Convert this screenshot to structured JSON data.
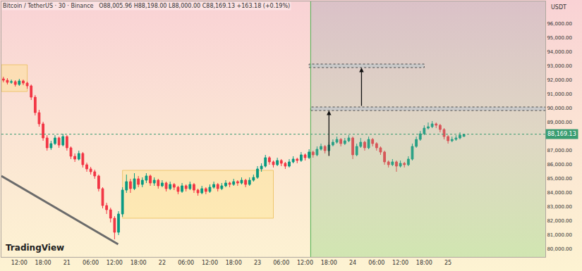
{
  "chart_data": {
    "type": "candlestick",
    "title": "Bitcoin / TetherUS · 30 · Binance   O88,005.96 H88,198.00 L88,000.00 C88,169.13 +163.18 (+0.19%)",
    "unit_label": "USDT",
    "watermark": "TradingView",
    "categories": [
      null,
      null,
      null,
      null,
      "12:00",
      null,
      null,
      null,
      null,
      null,
      "18:00",
      null,
      null,
      null,
      null,
      null,
      "21",
      null,
      null,
      null,
      null,
      null,
      "06:00",
      null,
      null,
      null,
      null,
      null,
      "12:00",
      null,
      null,
      null,
      null,
      null,
      "18:00",
      null,
      null,
      null,
      null,
      null,
      "22",
      null,
      null,
      null,
      null,
      null,
      "06:00",
      null,
      null,
      null,
      null,
      null,
      "12:00",
      null,
      null,
      null,
      null,
      null,
      "18:00",
      null,
      null,
      null,
      null,
      null,
      "23",
      null,
      null,
      null,
      null,
      null,
      "06:00",
      null,
      null,
      null,
      null,
      null,
      "12:00",
      null,
      null,
      null,
      null,
      null,
      "18:00",
      null,
      null,
      null,
      null,
      null,
      "24",
      null,
      null,
      null,
      null,
      null,
      "06:00",
      null,
      null,
      null,
      null,
      null,
      "12:00",
      null,
      null,
      null,
      null,
      null,
      "18:00",
      null,
      null,
      null,
      null,
      null,
      "25",
      null,
      null,
      null,
      null,
      null,
      null,
      null,
      null,
      null,
      null,
      null,
      null,
      null,
      null,
      null,
      null,
      null,
      null,
      null,
      null,
      null,
      null,
      null,
      null
    ],
    "ohlc": [
      [
        92100,
        92250,
        91850,
        92000
      ],
      [
        92000,
        92150,
        91700,
        91850
      ],
      [
        91850,
        92050,
        91750,
        91900
      ],
      [
        91900,
        92000,
        91550,
        91700
      ],
      [
        91700,
        92100,
        91600,
        91950
      ],
      [
        91950,
        92050,
        91650,
        91800
      ],
      [
        91800,
        91900,
        91400,
        91600
      ],
      [
        91600,
        91700,
        90600,
        90800
      ],
      [
        90800,
        90950,
        89500,
        89700
      ],
      [
        89700,
        89900,
        88700,
        88900
      ],
      [
        88900,
        89050,
        87700,
        87900
      ],
      [
        87900,
        88100,
        87000,
        87200
      ],
      [
        87200,
        87700,
        87050,
        87500
      ],
      [
        87500,
        88100,
        87400,
        87900
      ],
      [
        87900,
        88000,
        87200,
        87400
      ],
      [
        87400,
        88200,
        87300,
        88000
      ],
      [
        88000,
        88100,
        87000,
        87200
      ],
      [
        87200,
        87300,
        86400,
        86600
      ],
      [
        86600,
        86800,
        86200,
        86400
      ],
      [
        86400,
        87000,
        86300,
        86800
      ],
      [
        86800,
        86900,
        85800,
        86000
      ],
      [
        86000,
        86150,
        85500,
        85700
      ],
      [
        85700,
        85850,
        85300,
        85500
      ],
      [
        85500,
        85650,
        85000,
        85200
      ],
      [
        85200,
        85300,
        84100,
        84300
      ],
      [
        84300,
        84400,
        82900,
        83100
      ],
      [
        83100,
        83300,
        82500,
        82800
      ],
      [
        82800,
        82950,
        81900,
        82200
      ],
      [
        82200,
        82350,
        80700,
        81200
      ],
      [
        81200,
        82700,
        81000,
        82500
      ],
      [
        82500,
        84400,
        82300,
        84200
      ],
      [
        84200,
        85300,
        84000,
        84800
      ],
      [
        84800,
        85000,
        84000,
        84300
      ],
      [
        84300,
        85400,
        84200,
        85000
      ],
      [
        85000,
        85200,
        84400,
        84600
      ],
      [
        84600,
        85100,
        84400,
        84900
      ],
      [
        84900,
        85400,
        84700,
        85200
      ],
      [
        85200,
        85300,
        84500,
        84700
      ],
      [
        84700,
        85100,
        84500,
        84900
      ],
      [
        84900,
        85000,
        84300,
        84500
      ],
      [
        84500,
        84900,
        84400,
        84700
      ],
      [
        84700,
        84800,
        84100,
        84300
      ],
      [
        84300,
        84800,
        84200,
        84600
      ],
      [
        84600,
        84700,
        84200,
        84400
      ],
      [
        84400,
        84500,
        83900,
        84100
      ],
      [
        84100,
        84700,
        84000,
        84500
      ],
      [
        84500,
        84600,
        84100,
        84300
      ],
      [
        84300,
        84800,
        84200,
        84600
      ],
      [
        84600,
        84700,
        84000,
        84200
      ],
      [
        84200,
        84300,
        83800,
        84000
      ],
      [
        84000,
        84500,
        83900,
        84300
      ],
      [
        84300,
        84400,
        83900,
        84100
      ],
      [
        84100,
        84600,
        84000,
        84400
      ],
      [
        84400,
        84800,
        84300,
        84600
      ],
      [
        84600,
        84700,
        84100,
        84300
      ],
      [
        84300,
        84700,
        84200,
        84500
      ],
      [
        84500,
        84900,
        84400,
        84700
      ],
      [
        84700,
        84800,
        84400,
        84600
      ],
      [
        84600,
        85000,
        84500,
        84800
      ],
      [
        84800,
        84900,
        84500,
        84700
      ],
      [
        84700,
        85100,
        84600,
        84900
      ],
      [
        84900,
        85000,
        84400,
        84600
      ],
      [
        84600,
        85100,
        84500,
        84900
      ],
      [
        84900,
        85300,
        84800,
        85100
      ],
      [
        85100,
        85900,
        85000,
        85700
      ],
      [
        85700,
        86100,
        85500,
        85900
      ],
      [
        85900,
        86700,
        85800,
        86500
      ],
      [
        86500,
        86600,
        86000,
        86200
      ],
      [
        86200,
        86300,
        85800,
        86000
      ],
      [
        86000,
        86500,
        85900,
        86300
      ],
      [
        86300,
        86400,
        85900,
        86100
      ],
      [
        86100,
        86200,
        85700,
        85900
      ],
      [
        85900,
        86400,
        85800,
        86200
      ],
      [
        86200,
        86600,
        86100,
        86400
      ],
      [
        86400,
        86500,
        86100,
        86300
      ],
      [
        86300,
        86900,
        86200,
        86700
      ],
      [
        86700,
        86800,
        86300,
        86500
      ],
      [
        86500,
        87100,
        86400,
        86900
      ],
      [
        86900,
        87000,
        86500,
        86700
      ],
      [
        86700,
        87300,
        86600,
        87100
      ],
      [
        87100,
        87500,
        87000,
        87300
      ],
      [
        87300,
        87400,
        86800,
        87000
      ],
      [
        87000,
        87600,
        86900,
        87400
      ],
      [
        87400,
        87800,
        87300,
        87600
      ],
      [
        87600,
        88000,
        87500,
        87800
      ],
      [
        87800,
        87900,
        87300,
        87500
      ],
      [
        87500,
        87900,
        87400,
        87700
      ],
      [
        87700,
        88100,
        87600,
        87900
      ],
      [
        87900,
        88000,
        86400,
        86700
      ],
      [
        86700,
        87500,
        86600,
        87300
      ],
      [
        87300,
        87900,
        87200,
        87600
      ],
      [
        87600,
        87700,
        87000,
        87200
      ],
      [
        87200,
        88000,
        87100,
        87800
      ],
      [
        87800,
        87900,
        87300,
        87500
      ],
      [
        87500,
        87600,
        87000,
        87200
      ],
      [
        87200,
        87300,
        86700,
        86900
      ],
      [
        86900,
        87000,
        86000,
        86200
      ],
      [
        86200,
        86300,
        85800,
        86000
      ],
      [
        86000,
        86400,
        85900,
        86200
      ],
      [
        86200,
        86300,
        85500,
        85900
      ],
      [
        85900,
        86300,
        85800,
        86100
      ],
      [
        86100,
        86200,
        85800,
        86000
      ],
      [
        86000,
        86600,
        85900,
        86400
      ],
      [
        86400,
        87500,
        86300,
        87300
      ],
      [
        87300,
        88000,
        87200,
        87800
      ],
      [
        87800,
        88400,
        87700,
        88200
      ],
      [
        88200,
        88800,
        88100,
        88600
      ],
      [
        88600,
        89000,
        88500,
        88700
      ],
      [
        88700,
        89100,
        88600,
        88900
      ],
      [
        88900,
        89000,
        88600,
        88800
      ],
      [
        88800,
        88900,
        88300,
        88500
      ],
      [
        88500,
        88600,
        87800,
        88000
      ],
      [
        88000,
        88100,
        87500,
        87700
      ],
      [
        87700,
        88000,
        87600,
        87800
      ],
      [
        87800,
        88100,
        87700,
        87900
      ],
      [
        87900,
        88300,
        87800,
        88100
      ],
      [
        88005.96,
        88198,
        88000,
        88169.13
      ],
      null,
      null,
      null,
      null,
      null,
      null,
      null,
      null,
      null,
      null,
      null,
      null,
      null,
      null,
      null,
      null,
      null,
      null,
      null,
      null
    ],
    "ylim": [
      79450,
      97600
    ],
    "yticks": [
      {
        "value": 80000,
        "label": "80,000.00"
      },
      {
        "value": 81000,
        "label": "81,000.00"
      },
      {
        "value": 82000,
        "label": "82,000.00"
      },
      {
        "value": 83000,
        "label": "83,000.00"
      },
      {
        "value": 84000,
        "label": "84,000.00"
      },
      {
        "value": 85000,
        "label": "85,000.00"
      },
      {
        "value": 86000,
        "label": "86,000.00"
      },
      {
        "value": 87000,
        "label": "87,000.00"
      },
      {
        "value": 88000,
        "label": "88,000.00"
      },
      {
        "value": 89000,
        "label": "89,000.00"
      },
      {
        "value": 90000,
        "label": "90,000.00"
      },
      {
        "value": 91000,
        "label": "91,000.00"
      },
      {
        "value": 92000,
        "label": "92,000.00"
      },
      {
        "value": 93000,
        "label": "93,000.00"
      },
      {
        "value": 94000,
        "label": "94,000.00"
      },
      {
        "value": 95000,
        "label": "95,000.00"
      },
      {
        "value": 96000,
        "label": "96,000.00"
      }
    ],
    "grid": false,
    "price_line": {
      "value": 88169.13,
      "label": "88,169.13"
    },
    "projection_start": 77.4,
    "zones": [
      {
        "x": [
          -0.5,
          6
        ],
        "y": [
          91200,
          93100
        ]
      },
      {
        "x": [
          30,
          68
        ],
        "y": [
          82200,
          85600
        ]
      }
    ],
    "levels": [
      {
        "x": [
          77.4,
          136.5
        ],
        "y": [
          89850,
          90100
        ]
      },
      {
        "x": [
          77,
          106
        ],
        "y": [
          92900,
          93150
        ]
      }
    ],
    "arrows": [
      {
        "x": 82,
        "y": [
          86550,
          89850
        ]
      },
      {
        "x": 90.2,
        "y": [
          90100,
          92900
        ]
      }
    ],
    "trendline": {
      "x": [
        -0.5,
        28.9
      ],
      "y": [
        85200,
        80350
      ]
    }
  }
}
